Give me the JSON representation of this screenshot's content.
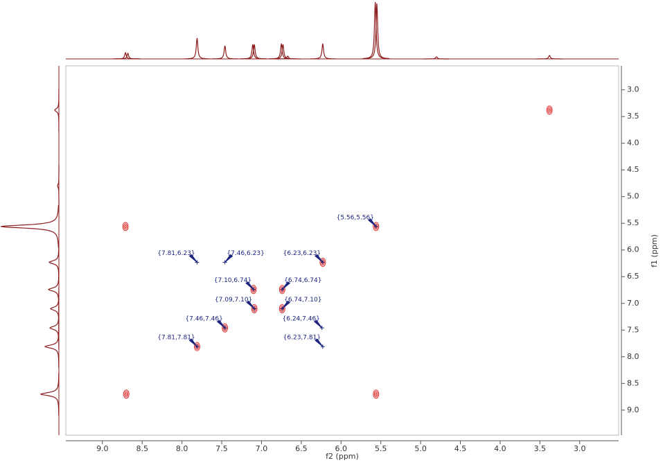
{
  "chart_data": {
    "type": "nmr2d",
    "x_label": "f2 (ppm)",
    "y_label": "f1 (ppm)",
    "xlim": [
      9.46,
      2.51
    ],
    "ylim": [
      2.55,
      9.47
    ],
    "xticks": [
      {
        "value": 9.0,
        "label": "9.0"
      },
      {
        "value": 8.5,
        "label": "8.5"
      },
      {
        "value": 8.0,
        "label": "8.0"
      },
      {
        "value": 7.5,
        "label": "7.5"
      },
      {
        "value": 7.0,
        "label": "7.0"
      },
      {
        "value": 6.5,
        "label": "6.5"
      },
      {
        "value": 6.0,
        "label": "6.0"
      },
      {
        "value": 5.5,
        "label": "5.5"
      },
      {
        "value": 5.0,
        "label": "5.0"
      },
      {
        "value": 4.5,
        "label": "4.5"
      },
      {
        "value": 4.0,
        "label": "4.0"
      },
      {
        "value": 3.5,
        "label": "3.5"
      },
      {
        "value": 3.0,
        "label": "3.0"
      }
    ],
    "yticks": [
      {
        "value": 3.0,
        "label": "3.0"
      },
      {
        "value": 3.5,
        "label": "3.5"
      },
      {
        "value": 4.0,
        "label": "4.0"
      },
      {
        "value": 4.5,
        "label": "4.5"
      },
      {
        "value": 5.0,
        "label": "5.0"
      },
      {
        "value": 5.5,
        "label": "5.5"
      },
      {
        "value": 6.0,
        "label": "6.0"
      },
      {
        "value": 6.5,
        "label": "6.5"
      },
      {
        "value": 7.0,
        "label": "7.0"
      },
      {
        "value": 7.5,
        "label": "7.5"
      },
      {
        "value": 8.0,
        "label": "8.0"
      },
      {
        "value": 8.5,
        "label": "8.5"
      },
      {
        "value": 9.0,
        "label": "9.0"
      }
    ],
    "contour_color": "#e0302e",
    "label_color": "#1a237e",
    "projection_color": "#8b1a1a",
    "peaks": [
      {
        "x": 5.56,
        "y": 5.56,
        "label": "{5.56,5.56}",
        "side": "left",
        "contour": true
      },
      {
        "x": 7.81,
        "y": 6.23,
        "label": "{7.81,6.23}",
        "side": "left",
        "contour": false
      },
      {
        "x": 7.46,
        "y": 6.23,
        "label": "{7.46,6.23}",
        "side": "right",
        "contour": false
      },
      {
        "x": 6.23,
        "y": 6.23,
        "label": "{6.23,6.23}",
        "side": "left",
        "contour": true
      },
      {
        "x": 7.1,
        "y": 6.74,
        "label": "{7.10,6.74}",
        "side": "left",
        "contour": true
      },
      {
        "x": 6.74,
        "y": 6.74,
        "label": "{6.74,6.74}",
        "side": "right",
        "contour": true
      },
      {
        "x": 7.09,
        "y": 7.1,
        "label": "{7.09,7.10}",
        "side": "left",
        "contour": true
      },
      {
        "x": 6.74,
        "y": 7.1,
        "label": "{6.74,7.10}",
        "side": "right",
        "contour": true
      },
      {
        "x": 7.46,
        "y": 7.46,
        "label": "{7.46,7.46}",
        "side": "left",
        "contour": true
      },
      {
        "x": 6.24,
        "y": 7.46,
        "label": "{6.24,7.46}",
        "side": "left",
        "contour": false
      },
      {
        "x": 7.81,
        "y": 7.81,
        "label": "{7.81,7.81}",
        "side": "left",
        "contour": true
      },
      {
        "x": 6.23,
        "y": 7.81,
        "label": "{6.23,7.81}",
        "side": "left",
        "contour": false
      },
      {
        "x": 3.38,
        "y": 3.38,
        "contour": true
      },
      {
        "x": 8.71,
        "y": 5.56,
        "contour": true
      },
      {
        "x": 8.7,
        "y": 8.7,
        "contour": true
      },
      {
        "x": 5.56,
        "y": 8.7,
        "contour": true
      }
    ],
    "projection_f2": [
      {
        "ppm": 8.71,
        "height": 9
      },
      {
        "ppm": 8.68,
        "height": 8
      },
      {
        "ppm": 7.81,
        "height": 30
      },
      {
        "ppm": 7.46,
        "height": 19
      },
      {
        "ppm": 7.11,
        "height": 21
      },
      {
        "ppm": 7.09,
        "height": 21
      },
      {
        "ppm": 6.75,
        "height": 22
      },
      {
        "ppm": 6.73,
        "height": 21
      },
      {
        "ppm": 6.67,
        "height": 4
      },
      {
        "ppm": 6.23,
        "height": 22
      },
      {
        "ppm": 5.57,
        "height": 82
      },
      {
        "ppm": 5.55,
        "height": 80
      },
      {
        "ppm": 4.8,
        "height": 3
      },
      {
        "ppm": 3.38,
        "height": 5
      }
    ],
    "projection_f1": [
      {
        "ppm": 3.38,
        "height": 6
      },
      {
        "ppm": 4.8,
        "height": 2
      },
      {
        "ppm": 5.56,
        "height": 84
      },
      {
        "ppm": 6.23,
        "height": 14
      },
      {
        "ppm": 6.74,
        "height": 15
      },
      {
        "ppm": 7.1,
        "height": 12
      },
      {
        "ppm": 7.46,
        "height": 13
      },
      {
        "ppm": 7.81,
        "height": 20
      },
      {
        "ppm": 8.7,
        "height": 26
      }
    ]
  }
}
